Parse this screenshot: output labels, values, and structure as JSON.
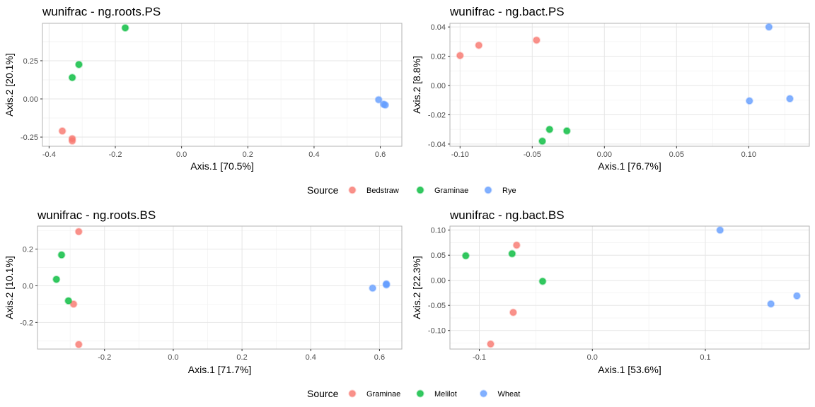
{
  "colors": {
    "series_a": "#F8766D",
    "series_b": "#00BA38",
    "series_c": "#619CFF",
    "panel_border": "#b3b3b3",
    "grid_major": "#e6e6e6",
    "grid_minor": "#f3f3f3"
  },
  "legends": [
    {
      "title": "Source",
      "entries": [
        "Bedstraw",
        "Graminae",
        "Rye"
      ]
    },
    {
      "title": "Source",
      "entries": [
        "Graminae",
        "Melilot",
        "Wheat"
      ]
    }
  ],
  "chart_data": [
    {
      "type": "scatter",
      "title": "wunifrac - ng.roots.PS",
      "xlabel": "Axis.1   [70.5%]",
      "ylabel": "Axis.2   [20.1%]",
      "xlim": [
        -0.42,
        0.665
      ],
      "ylim": [
        -0.31,
        0.495
      ],
      "xticks": [
        -0.4,
        -0.2,
        0.0,
        0.2,
        0.4,
        0.6
      ],
      "xtick_labels": [
        "-0.4",
        "-0.2",
        "0.0",
        "0.2",
        "0.4",
        "0.6"
      ],
      "yticks": [
        -0.25,
        0.0,
        0.25
      ],
      "ytick_labels": [
        "-0.25",
        "0.00",
        "0.25"
      ],
      "grid": true,
      "legend": 0,
      "series": [
        {
          "name": "Bedstraw",
          "color": "#F8766D",
          "x": [
            -0.36,
            -0.33,
            -0.33
          ],
          "y": [
            -0.21,
            -0.26,
            -0.275
          ]
        },
        {
          "name": "Graminae",
          "color": "#00BA38",
          "x": [
            -0.17,
            -0.31,
            -0.33
          ],
          "y": [
            0.465,
            0.225,
            0.14
          ]
        },
        {
          "name": "Rye",
          "color": "#619CFF",
          "x": [
            0.595,
            0.61,
            0.615
          ],
          "y": [
            -0.005,
            -0.035,
            -0.04
          ]
        }
      ]
    },
    {
      "type": "scatter",
      "title": "wunifrac - ng.bact.PS",
      "xlabel": "Axis.1   [76.7%]",
      "ylabel": "Axis.2   [8.8%]",
      "xlim": [
        -0.107,
        0.142
      ],
      "ylim": [
        -0.0415,
        0.0425
      ],
      "xticks": [
        -0.1,
        -0.05,
        0.0,
        0.05,
        0.1
      ],
      "xtick_labels": [
        "-0.10",
        "-0.05",
        "0.00",
        "0.05",
        "0.10"
      ],
      "yticks": [
        -0.04,
        -0.02,
        0.0,
        0.02,
        0.04
      ],
      "ytick_labels": [
        "-0.04",
        "-0.02",
        "0.00",
        "0.02",
        "0.04"
      ],
      "grid": true,
      "legend": 0,
      "series": [
        {
          "name": "Bedstraw",
          "color": "#F8766D",
          "x": [
            -0.1,
            -0.087,
            -0.047
          ],
          "y": [
            0.0205,
            0.0275,
            0.031
          ]
        },
        {
          "name": "Graminae",
          "color": "#00BA38",
          "x": [
            -0.043,
            -0.038,
            -0.026
          ],
          "y": [
            -0.038,
            -0.03,
            -0.031
          ]
        },
        {
          "name": "Rye",
          "color": "#619CFF",
          "x": [
            0.114,
            0.1005,
            0.1285
          ],
          "y": [
            0.04,
            -0.0105,
            -0.009
          ]
        }
      ]
    },
    {
      "type": "scatter",
      "title": "wunifrac - ng.roots.BS",
      "xlabel": "Axis.1   [71.7%]",
      "ylabel": "Axis.2   [10.1%]",
      "xlim": [
        -0.395,
        0.665
      ],
      "ylim": [
        -0.345,
        0.325
      ],
      "xticks": [
        -0.2,
        0.0,
        0.2,
        0.4,
        0.6
      ],
      "xtick_labels": [
        "-0.2",
        "0.0",
        "0.2",
        "0.4",
        "0.6"
      ],
      "yticks": [
        -0.2,
        0.0,
        0.2
      ],
      "ytick_labels": [
        "-0.2",
        "0.0",
        "0.2"
      ],
      "grid": true,
      "legend": 1,
      "series": [
        {
          "name": "Graminae",
          "color": "#F8766D",
          "x": [
            -0.275,
            -0.29,
            -0.275
          ],
          "y": [
            0.295,
            -0.1,
            -0.32
          ]
        },
        {
          "name": "Melilot",
          "color": "#00BA38",
          "x": [
            -0.325,
            -0.34,
            -0.305
          ],
          "y": [
            0.168,
            0.035,
            -0.082
          ]
        },
        {
          "name": "Wheat",
          "color": "#619CFF",
          "x": [
            0.58,
            0.62,
            0.62
          ],
          "y": [
            -0.013,
            0.01,
            0.005
          ]
        }
      ]
    },
    {
      "type": "scatter",
      "title": "wunifrac - ng.bact.BS",
      "xlabel": "Axis.1   [53.6%]",
      "ylabel": "Axis.2   [22.3%]",
      "xlim": [
        -0.126,
        0.192
      ],
      "ylim": [
        -0.137,
        0.108
      ],
      "xticks": [
        -0.1,
        0.0,
        0.1
      ],
      "xtick_labels": [
        "-0.1",
        "0.0",
        "0.1"
      ],
      "yticks": [
        -0.1,
        -0.05,
        0.0,
        0.05,
        0.1
      ],
      "ytick_labels": [
        "-0.10",
        "-0.05",
        "0.00",
        "0.05",
        "0.10"
      ],
      "grid": true,
      "legend": 1,
      "series": [
        {
          "name": "Graminae",
          "color": "#F8766D",
          "x": [
            -0.067,
            -0.07,
            -0.09
          ],
          "y": [
            0.07,
            -0.064,
            -0.127
          ]
        },
        {
          "name": "Melilot",
          "color": "#00BA38",
          "x": [
            -0.112,
            -0.071,
            -0.044
          ],
          "y": [
            0.049,
            0.053,
            -0.002
          ]
        },
        {
          "name": "Wheat",
          "color": "#619CFF",
          "x": [
            0.113,
            0.158,
            0.181
          ],
          "y": [
            0.1,
            -0.047,
            -0.031
          ]
        }
      ]
    }
  ]
}
